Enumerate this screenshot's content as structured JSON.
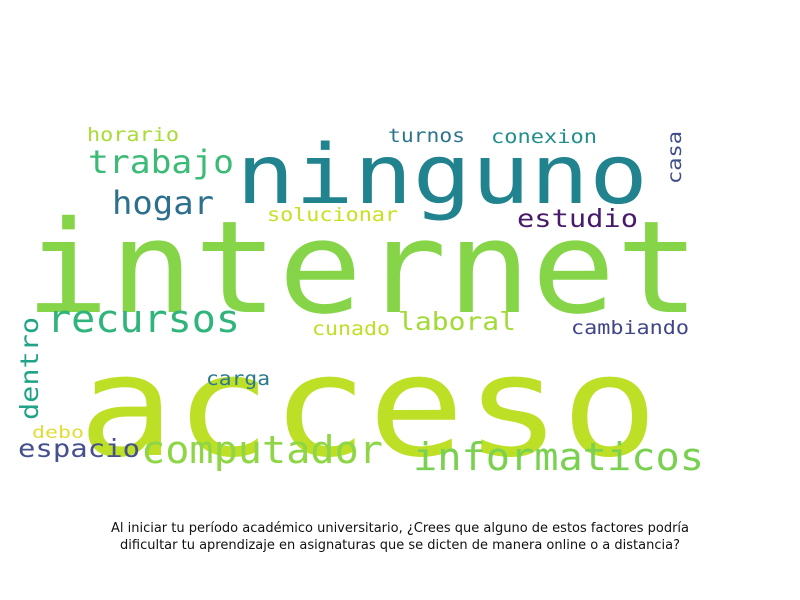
{
  "chart_data": {
    "type": "wordcloud",
    "caption": "Al iniciar tu período académico universitario, ¿Crees que alguno de estos factores podría dificultar tu aprendizaje en asignaturas que se dicten de manera online o a distancia?",
    "words": [
      {
        "text": "internet",
        "color": "#86d549"
      },
      {
        "text": "acceso",
        "color": "#bddf26"
      },
      {
        "text": "ninguno",
        "color": "#21838e"
      },
      {
        "text": "trabajo",
        "color": "#3bbb75"
      },
      {
        "text": "hogar",
        "color": "#2d708e"
      },
      {
        "text": "recursos",
        "color": "#2fb47c"
      },
      {
        "text": "computador",
        "color": "#8ed645"
      },
      {
        "text": "informaticos",
        "color": "#7ad151"
      },
      {
        "text": "espacio",
        "color": "#46508c"
      },
      {
        "text": "estudio",
        "color": "#481a6c"
      },
      {
        "text": "laboral",
        "color": "#a2da37"
      },
      {
        "text": "horario",
        "color": "#a8db34"
      },
      {
        "text": "turnos",
        "color": "#2c738e"
      },
      {
        "text": "conexion",
        "color": "#21908d"
      },
      {
        "text": "casa",
        "color": "#3e4c8a"
      },
      {
        "text": "solucionar",
        "color": "#c8e020"
      },
      {
        "text": "cunado",
        "color": "#bfdf25"
      },
      {
        "text": "cambiando",
        "color": "#404588"
      },
      {
        "text": "carga",
        "color": "#2a788e"
      },
      {
        "text": "dentro",
        "color": "#20a386"
      },
      {
        "text": "debo",
        "color": "#e1dd37"
      }
    ]
  }
}
